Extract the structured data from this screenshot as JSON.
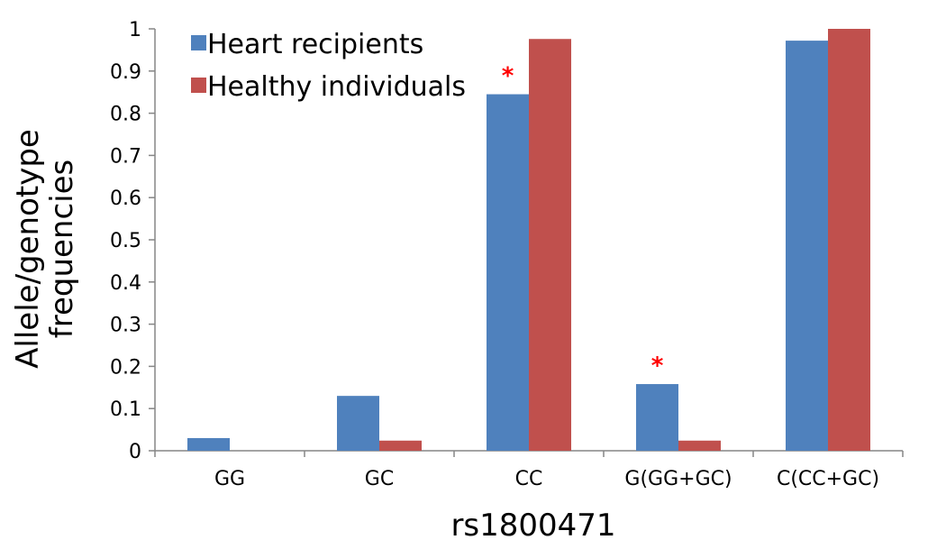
{
  "chart_data": {
    "type": "bar",
    "categories": [
      "GG",
      "GC",
      "CC",
      "G(GG+GC)",
      "C(CC+GC)"
    ],
    "series": [
      {
        "name": "Heart recipients",
        "color": "#4f81bd",
        "values": [
          0.03,
          0.13,
          0.845,
          0.158,
          0.972
        ]
      },
      {
        "name": "Healthy individuals",
        "color": "#c0504d",
        "values": [
          0.0,
          0.024,
          0.976,
          0.024,
          1.0
        ]
      }
    ],
    "xlabel": "rs1800471",
    "ylabel_lines": [
      "Allele/genotype",
      "frequencies"
    ],
    "ylim": [
      0,
      1
    ],
    "yticks": [
      {
        "value": 0,
        "label": "0"
      },
      {
        "value": 0.1,
        "label": "0.1"
      },
      {
        "value": 0.2,
        "label": "0.2"
      },
      {
        "value": 0.3,
        "label": "0.3"
      },
      {
        "value": 0.4,
        "label": "0.4"
      },
      {
        "value": 0.5,
        "label": "0.5"
      },
      {
        "value": 0.6,
        "label": "0.6"
      },
      {
        "value": 0.7,
        "label": "0.7"
      },
      {
        "value": 0.8,
        "label": "0.8"
      },
      {
        "value": 0.9,
        "label": "0.9"
      },
      {
        "value": 1,
        "label": "1"
      }
    ],
    "annotations": [
      {
        "text": "*",
        "category": "CC",
        "color": "#ff0000"
      },
      {
        "text": "*",
        "category": "G(GG+GC)",
        "color": "#ff0000"
      }
    ],
    "grid": false,
    "legend_position": "top-left"
  }
}
